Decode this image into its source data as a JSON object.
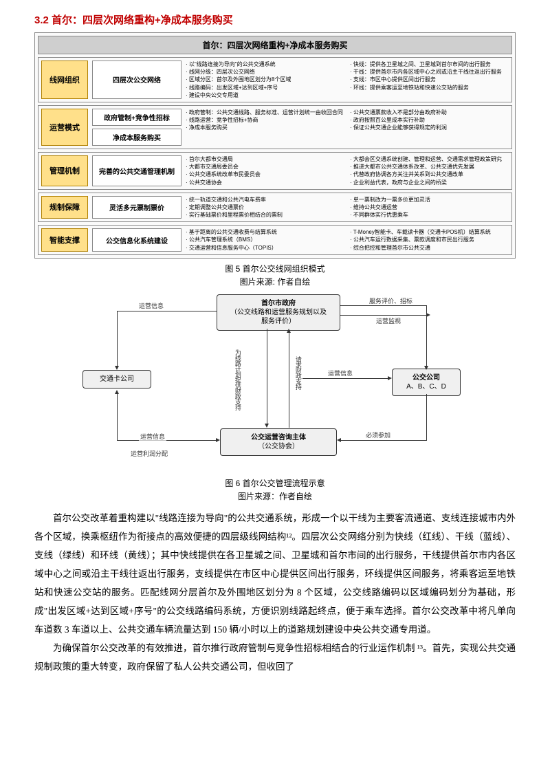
{
  "section_title": "3.2 首尔：四层次网络重构+净成本服务购买",
  "diagram": {
    "title": "首尔：四层次网络重构+净成本服务购买",
    "rows": [
      {
        "label": "线网组织",
        "subs": [
          "四层次公交网络"
        ],
        "col1": [
          "以\"线路连接为导向\"的公共交通系统",
          "线网分级：四层次公交网络",
          "区域分区：首尔及外围地区划分为8个区域",
          "线路编码：出发区域+达到区域+序号",
          "建设中央公交专用道"
        ],
        "col2": [
          "快线：提供各卫星城之间、卫星城到首尔市间的出行服务",
          "干线：提供首尔市内各区域中心之间或沿主干线往返出行服务",
          "支线：市区中心提供区间出行服务",
          "环线：提供乘客运至地铁站和快速公交站的服务"
        ]
      },
      {
        "label": "运营模式",
        "subs": [
          "政府管制+竞争性招标",
          "净成本服务购买"
        ],
        "col1": [
          "政府管制：公共交通线路、服务标准、运营计划统一由收回合同",
          "线路运营：竞争性招标+协商",
          "净成本服务购买"
        ],
        "col2": [
          "公共交通票款收入不是部分由政府补助",
          "政府按照百公里成本实行补助",
          "保证公共交通企业能够获得规定的利润"
        ]
      },
      {
        "label": "管理机制",
        "subs": [
          "完善的公共交通管理机制"
        ],
        "col1": [
          "首尔大都市交通局",
          "大都市交通局委员会",
          "公共交通系统改革市民委员会",
          "公共交通协会"
        ],
        "col2": [
          "大都会区交通系统创建、管理和运营、交通需求管理政策研究",
          "推进大都市公共交通体系改革、公共交通优先发展",
          "代替政府协调各方关注并关系到公共交通改革",
          "企业利益代表，政府与企业之间的桥梁"
        ]
      },
      {
        "label": "规制保障",
        "subs": [
          "灵活多元票制票价"
        ],
        "col1": [
          "统一轨道交通和公共汽电车费率",
          "定期调整公共交通票价",
          "实行基础票价和里程票价相结合的票制"
        ],
        "col2": [
          "单一票制改为一票多价更加灵活",
          "维持公共交通运营",
          "不同群体实行优惠乘车"
        ]
      },
      {
        "label": "智能支撑",
        "subs": [
          "公交信息化系统建设"
        ],
        "col1": [
          "基于距离的公共交通收费与结算系统",
          "公共汽车管理系统（BMS）",
          "交通运营和信息服务中心（TOPIS）"
        ],
        "col2": [
          "T-Money智能卡、车载读卡器（交通卡POS机）结算系统",
          "公共汽车运行数据采集、票款调度和市民出行服务",
          "综合把控和管理首尔市公共交通"
        ]
      }
    ]
  },
  "caption1": "图 5 首尔公交线网组织模式",
  "source1": "图片来源: 作者自绘",
  "flowchart": {
    "top": {
      "l1": "首尔市政府",
      "l2": "（公交线路和运营服务规划以及",
      "l3": "服务评价）"
    },
    "left": "交通卡公司",
    "bottom": {
      "l1": "公交运营咨询主体",
      "l2": "（公交协会）"
    },
    "right": {
      "l1": "公交公司",
      "l2": "A、B、C、D"
    },
    "edges": {
      "topLeft": "运营信息",
      "topRight1": "服务评价、招标",
      "topRight2": "运营监视",
      "leftBottom1": "运营信息",
      "leftBottom2": "运营利润分配",
      "midLeft": "为线路计划提供财政支持",
      "midRight1": "请求财政支持",
      "midRight2": "运营信息",
      "bottomRight": "必须参加"
    }
  },
  "caption2": "图 6 首尔公交管理流程示意",
  "source2": "图片来源：作者自绘",
  "paragraphs": [
    "首尔公交改革着重构建以\"线路连接为导向\"的公共交通系统，形成一个以干线为主要客流通道、支线连接城市内外各个区域，换乘枢纽作为衔接点的高效便捷的四层级线网结构¹²。四层次公交网络分别为快线（红线）、干线（蓝线）、支线（绿线）和环线（黄线）；其中快线提供在各卫星城之间、卫星城和首尔市间的出行服务，干线提供首尔市内各区域中心之间或沿主干线往返出行服务，支线提供在市区中心提供区间出行服务，环线提供区间服务，将乘客运至地铁站和快速公交站的服务。匹配线网分层首尔及外围地区划分为 8 个区域，公交线路编码以区域编码划分为基础，形成\"出发区域+达到区域+序号\"的公交线路编码系统，方便识别线路起终点，便于乘车选择。首尔公交改革中将凡单向车道数 3 车道以上、公共交通车辆流量达到 150 辆/小时以上的道路规划建设中央公共交通专用道。",
    "为确保首尔公交改革的有效推进，首尔推行政府管制与竞争性招标相结合的行业运作机制 ¹³。首先，实现公共交通规制政策的重大转变，政府保留了私人公共交通公司，但收回了"
  ]
}
